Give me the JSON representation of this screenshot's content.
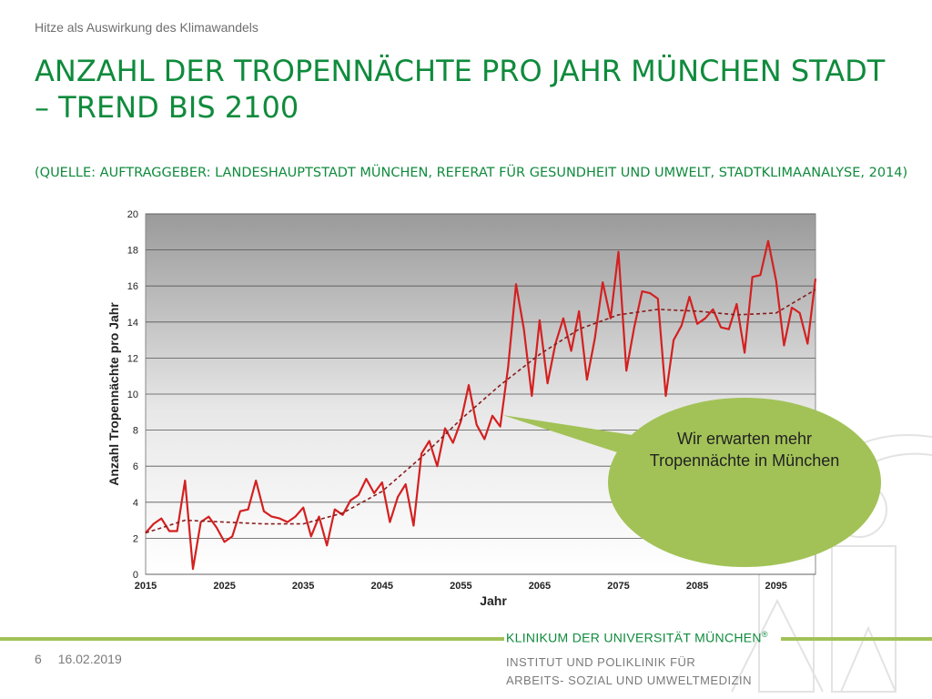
{
  "slide": {
    "kicker": "Hitze als Auswirkung des Klimawandels",
    "title": "ANZAHL DER TROPENNÄCHTE PRO JAHR MÜNCHEN STADT – TREND BIS 2100",
    "source": "(QUELLE: AUFTRAGGEBER: LANDESHAUPTSTADT MÜNCHEN, REFERAT FÜR GESUNDHEIT UND UMWELT, STADTKLIMAANALYSE, 2014)",
    "callout": "Wir erwarten mehr Tropennächte in München",
    "accent_green": "#0f8b3c",
    "accent_lime": "#a2c257"
  },
  "footer": {
    "page": "6",
    "date": "16.02.2019",
    "org": "KLINIKUM DER UNIVERSITÄT MÜNCHEN",
    "org_mark": "®",
    "dept_line1": "INSTITUT  UND POLIKLINIK FÜR",
    "dept_line2": "ARBEITS- SOZIAL UND UMWELTMEDIZIN"
  },
  "chart_data": {
    "type": "line",
    "xlabel": "Jahr",
    "ylabel": "Anzahl Tropennächte pro Jahr",
    "xlim": [
      2015,
      2100
    ],
    "ylim": [
      0,
      20
    ],
    "xticks": [
      2015,
      2025,
      2035,
      2045,
      2055,
      2065,
      2075,
      2085,
      2095
    ],
    "yticks": [
      0,
      2,
      4,
      6,
      8,
      10,
      12,
      14,
      16,
      18,
      20
    ],
    "grid": true,
    "series": [
      {
        "color": "#d42020",
        "style": "solid",
        "x": [
          2015,
          2016,
          2017,
          2018,
          2019,
          2020,
          2021,
          2022,
          2023,
          2024,
          2025,
          2026,
          2027,
          2028,
          2029,
          2030,
          2031,
          2032,
          2033,
          2034,
          2035,
          2036,
          2037,
          2038,
          2039,
          2040,
          2041,
          2042,
          2043,
          2044,
          2045,
          2046,
          2047,
          2048,
          2049,
          2050,
          2051,
          2052,
          2053,
          2054,
          2055,
          2056,
          2057,
          2058,
          2059,
          2060,
          2061,
          2062,
          2063,
          2064,
          2065,
          2066,
          2067,
          2068,
          2069,
          2070,
          2071,
          2072,
          2073,
          2074,
          2075,
          2076,
          2077,
          2078,
          2079,
          2080,
          2081,
          2082,
          2083,
          2084,
          2085,
          2086,
          2087,
          2088,
          2089,
          2090,
          2091,
          2092,
          2093,
          2094,
          2095,
          2096,
          2097,
          2098,
          2099,
          2100
        ],
        "values": [
          2.3,
          2.8,
          3.1,
          2.4,
          2.4,
          5.2,
          0.3,
          2.9,
          3.2,
          2.6,
          1.8,
          2.1,
          3.5,
          3.6,
          5.2,
          3.5,
          3.2,
          3.1,
          2.9,
          3.2,
          3.7,
          2.1,
          3.2,
          1.6,
          3.6,
          3.3,
          4.1,
          4.4,
          5.3,
          4.5,
          5.1,
          2.9,
          4.3,
          5.0,
          2.7,
          6.7,
          7.4,
          6.0,
          8.1,
          7.3,
          8.5,
          10.5,
          8.3,
          7.5,
          8.8,
          8.2,
          11.5,
          16.1,
          13.6,
          9.9,
          14.1,
          10.6,
          12.8,
          14.2,
          12.4,
          14.6,
          10.8,
          13.1,
          16.2,
          14.2,
          17.9,
          11.3,
          13.7,
          15.7,
          15.6,
          15.3,
          9.9,
          13.0,
          13.8,
          15.4,
          13.9,
          14.2,
          14.7,
          13.7,
          13.6,
          15.0,
          12.3,
          16.5,
          16.6,
          18.5,
          16.3,
          12.7,
          14.8,
          14.5,
          12.8,
          16.4
        ]
      },
      {
        "color": "#8b1c1c",
        "style": "dashed",
        "x": [
          2015,
          2020,
          2025,
          2030,
          2035,
          2040,
          2045,
          2050,
          2055,
          2060,
          2065,
          2070,
          2075,
          2080,
          2085,
          2090,
          2095,
          2100
        ],
        "values": [
          2.3,
          3.0,
          2.9,
          2.8,
          2.8,
          3.4,
          4.6,
          6.5,
          8.6,
          10.5,
          12.2,
          13.6,
          14.4,
          14.7,
          14.6,
          14.4,
          14.5,
          15.8
        ]
      }
    ]
  }
}
